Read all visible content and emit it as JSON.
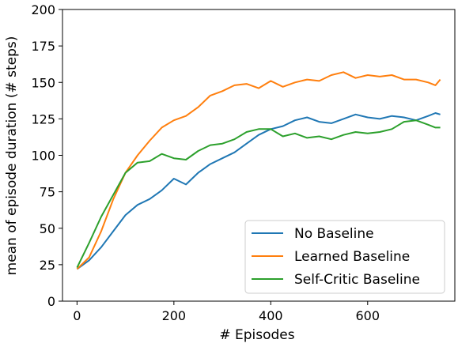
{
  "chart_data": {
    "type": "line",
    "title": "",
    "xlabel": "# Episodes",
    "ylabel": "mean of episode duration (# steps)",
    "xlim": [
      -30,
      780
    ],
    "ylim": [
      0,
      200
    ],
    "xticks": [
      0,
      200,
      400,
      600
    ],
    "yticks": [
      0,
      25,
      50,
      75,
      100,
      125,
      150,
      175,
      200
    ],
    "grid": false,
    "legend_position": "lower-right",
    "series": [
      {
        "name": "No Baseline",
        "color": "#1f77b4",
        "x": [
          0,
          25,
          50,
          75,
          100,
          125,
          150,
          175,
          200,
          225,
          250,
          275,
          300,
          325,
          350,
          375,
          400,
          425,
          450,
          475,
          500,
          525,
          550,
          575,
          600,
          625,
          650,
          675,
          700,
          725,
          740,
          750
        ],
        "y": [
          22,
          28,
          37,
          48,
          59,
          66,
          70,
          76,
          84,
          80,
          88,
          94,
          98,
          102,
          108,
          114,
          118,
          120,
          124,
          126,
          123,
          122,
          125,
          128,
          126,
          125,
          127,
          126,
          124,
          127,
          129,
          128
        ]
      },
      {
        "name": "Learned Baseline",
        "color": "#ff7f0e",
        "x": [
          0,
          25,
          50,
          75,
          100,
          125,
          150,
          175,
          200,
          225,
          250,
          275,
          300,
          325,
          350,
          375,
          400,
          425,
          450,
          475,
          500,
          525,
          550,
          575,
          600,
          625,
          650,
          675,
          700,
          725,
          740,
          750
        ],
        "y": [
          22,
          30,
          48,
          70,
          88,
          100,
          110,
          119,
          124,
          127,
          133,
          141,
          144,
          148,
          149,
          146,
          151,
          147,
          150,
          152,
          151,
          155,
          157,
          153,
          155,
          154,
          155,
          152,
          152,
          150,
          148,
          152
        ]
      },
      {
        "name": "Self-Critic Baseline",
        "color": "#2ca02c",
        "x": [
          0,
          25,
          50,
          75,
          100,
          125,
          150,
          175,
          200,
          225,
          250,
          275,
          300,
          325,
          350,
          375,
          400,
          425,
          450,
          475,
          500,
          525,
          550,
          575,
          600,
          625,
          650,
          675,
          700,
          725,
          740,
          750
        ],
        "y": [
          23,
          40,
          58,
          73,
          88,
          95,
          96,
          101,
          98,
          97,
          103,
          107,
          108,
          111,
          116,
          118,
          118,
          113,
          115,
          112,
          113,
          111,
          114,
          116,
          115,
          116,
          118,
          123,
          124,
          121,
          119,
          119
        ]
      }
    ]
  }
}
